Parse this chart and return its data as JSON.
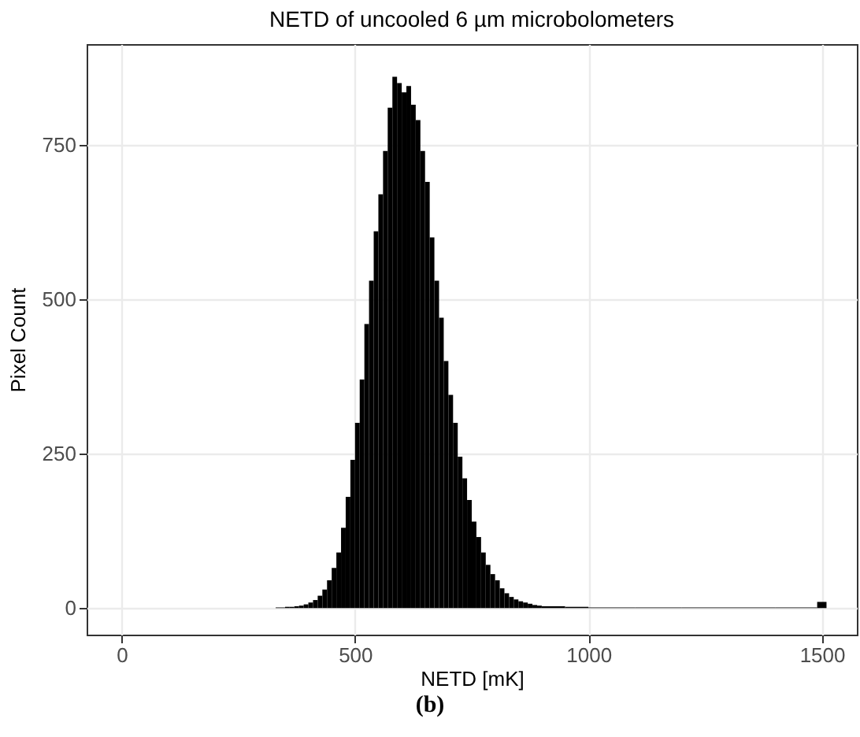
{
  "chart_data": {
    "type": "histogram",
    "title": "NETD of uncooled 6 µm microbolometers",
    "xlabel": "NETD [mK]",
    "ylabel": "Pixel Count",
    "annotations": [
      "(b)"
    ],
    "bins": [
      330,
      340,
      350,
      360,
      370,
      380,
      390,
      400,
      410,
      420,
      430,
      440,
      450,
      460,
      470,
      480,
      490,
      500,
      510,
      520,
      530,
      540,
      550,
      560,
      570,
      580,
      590,
      600,
      610,
      620,
      630,
      640,
      650,
      660,
      670,
      680,
      690,
      700,
      710,
      720,
      730,
      740,
      750,
      760,
      770,
      780,
      790,
      800,
      810,
      820,
      830,
      840,
      850,
      860,
      870,
      880,
      890,
      900,
      950,
      1000,
      1100,
      1200,
      1300,
      1400,
      1490,
      1510
    ],
    "values": [
      1,
      1,
      2,
      2,
      3,
      4,
      6,
      9,
      13,
      20,
      30,
      45,
      65,
      90,
      130,
      180,
      240,
      300,
      370,
      460,
      530,
      610,
      670,
      740,
      810,
      860,
      850,
      835,
      845,
      815,
      790,
      740,
      690,
      600,
      530,
      470,
      400,
      345,
      300,
      245,
      210,
      175,
      140,
      115,
      90,
      70,
      55,
      45,
      32,
      24,
      18,
      14,
      11,
      9,
      7,
      5,
      4,
      3,
      2,
      1,
      1,
      1,
      1,
      1,
      10
    ],
    "color": "#000000",
    "xlim": [
      -75,
      1575
    ],
    "xticks": [
      0,
      500,
      1000,
      1500
    ],
    "ylim": [
      -43,
      913
    ],
    "yticks": [
      0,
      250,
      500,
      750
    ],
    "grid": true
  }
}
